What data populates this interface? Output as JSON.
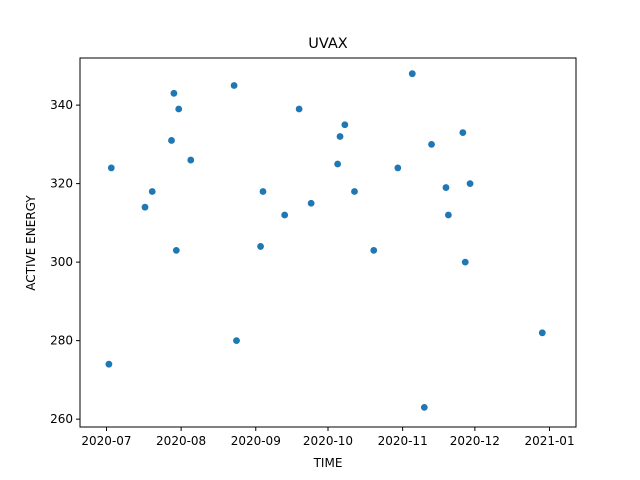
{
  "chart_data": {
    "type": "scatter",
    "title": "UVAX",
    "xlabel": "TIME",
    "ylabel": "ACTIVE ENERGY",
    "xlim": [
      "2020-06-20",
      "2021-01-12"
    ],
    "ylim": [
      258,
      352
    ],
    "x_ticks": [
      "2020-07-01",
      "2020-08-01",
      "2020-09-01",
      "2020-10-01",
      "2020-11-01",
      "2020-12-01",
      "2021-01-01"
    ],
    "x_tick_labels": [
      "2020-07",
      "2020-08",
      "2020-09",
      "2020-10",
      "2020-11",
      "2020-12",
      "2021-01"
    ],
    "y_ticks": [
      260,
      280,
      300,
      320,
      340
    ],
    "y_tick_labels": [
      "260",
      "280",
      "300",
      "320",
      "340"
    ],
    "grid": false,
    "color": "#1f77b4",
    "points": [
      {
        "x": "2020-07-02",
        "y": 274
      },
      {
        "x": "2020-07-03",
        "y": 324
      },
      {
        "x": "2020-07-17",
        "y": 314
      },
      {
        "x": "2020-07-20",
        "y": 318
      },
      {
        "x": "2020-07-28",
        "y": 331
      },
      {
        "x": "2020-07-29",
        "y": 343
      },
      {
        "x": "2020-07-30",
        "y": 303
      },
      {
        "x": "2020-07-31",
        "y": 339
      },
      {
        "x": "2020-08-05",
        "y": 326
      },
      {
        "x": "2020-08-23",
        "y": 345
      },
      {
        "x": "2020-08-24",
        "y": 280
      },
      {
        "x": "2020-09-03",
        "y": 304
      },
      {
        "x": "2020-09-04",
        "y": 318
      },
      {
        "x": "2020-09-13",
        "y": 312
      },
      {
        "x": "2020-09-19",
        "y": 339
      },
      {
        "x": "2020-09-24",
        "y": 315
      },
      {
        "x": "2020-10-05",
        "y": 325
      },
      {
        "x": "2020-10-06",
        "y": 332
      },
      {
        "x": "2020-10-08",
        "y": 335
      },
      {
        "x": "2020-10-12",
        "y": 318
      },
      {
        "x": "2020-10-20",
        "y": 303
      },
      {
        "x": "2020-10-30",
        "y": 324
      },
      {
        "x": "2020-11-05",
        "y": 348
      },
      {
        "x": "2020-11-10",
        "y": 263
      },
      {
        "x": "2020-11-13",
        "y": 330
      },
      {
        "x": "2020-11-19",
        "y": 319
      },
      {
        "x": "2020-11-20",
        "y": 312
      },
      {
        "x": "2020-11-26",
        "y": 333
      },
      {
        "x": "2020-11-27",
        "y": 300
      },
      {
        "x": "2020-11-29",
        "y": 320
      },
      {
        "x": "2020-12-29",
        "y": 282
      }
    ]
  }
}
